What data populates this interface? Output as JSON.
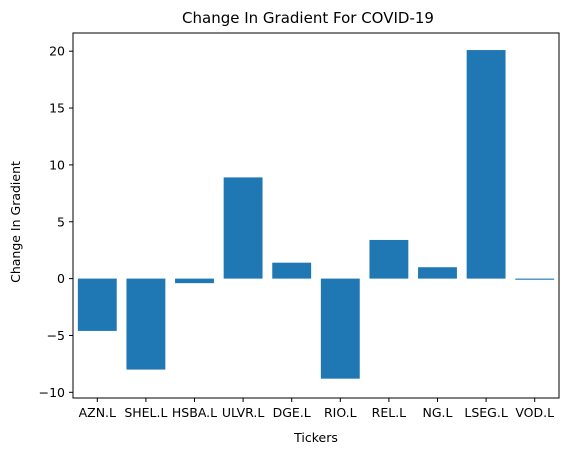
{
  "chart_data": {
    "type": "bar",
    "title": "Change In Gradient For COVID-19",
    "xlabel": "Tickers",
    "ylabel": "Change In Gradient",
    "categories": [
      "AZN.L",
      "SHEL.L",
      "HSBA.L",
      "ULVR.L",
      "DGE.L",
      "RIO.L",
      "REL.L",
      "NG.L",
      "LSEG.L",
      "VOD.L"
    ],
    "values": [
      -4.6,
      -8.0,
      -0.4,
      8.9,
      1.4,
      -8.8,
      3.4,
      1.0,
      20.1,
      -0.1
    ],
    "ylim": [
      -10.5,
      21.6
    ],
    "yticks": [
      -10,
      -5,
      0,
      5,
      10,
      15,
      20
    ],
    "ytick_labels": [
      "−10",
      "−5",
      "0",
      "5",
      "10",
      "15",
      "20"
    ],
    "bar_color": "#1f77b4",
    "grid": false,
    "legend": "none"
  }
}
